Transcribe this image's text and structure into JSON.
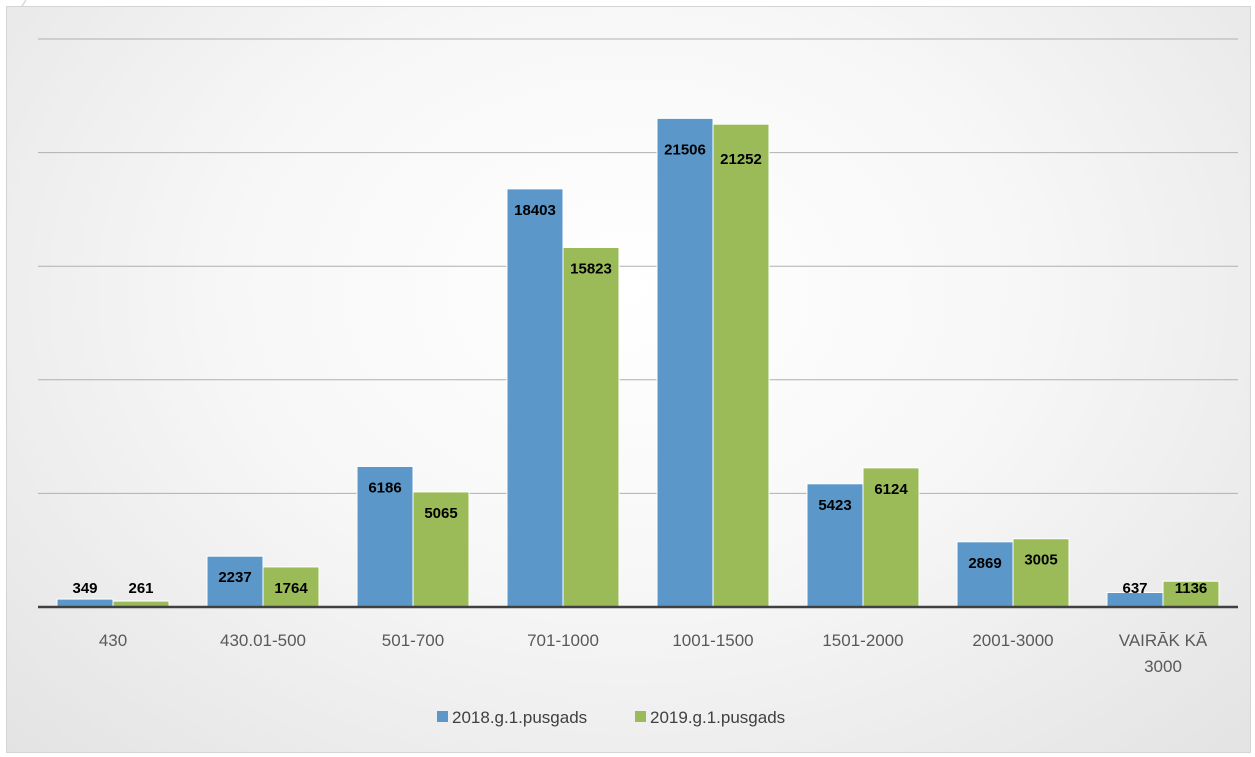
{
  "chart_data": {
    "type": "bar",
    "categories": [
      "430",
      "430.01-500",
      "501-700",
      "701-1000",
      "1001-1500",
      "1501-2000",
      "2001-3000",
      "VAIRĀK KĀ 3000"
    ],
    "category_lines": [
      [
        "430"
      ],
      [
        "430.01-500"
      ],
      [
        "501-700"
      ],
      [
        "701-1000"
      ],
      [
        "1001-1500"
      ],
      [
        "1501-2000"
      ],
      [
        "2001-3000"
      ],
      [
        "VAIRĀK KĀ",
        "3000"
      ]
    ],
    "series": [
      {
        "name": "2018.g.1.pusgads",
        "color": "#5b97c8",
        "values": [
          349,
          2237,
          6186,
          18403,
          21506,
          5423,
          2869,
          637
        ]
      },
      {
        "name": "2019.g.1.pusgads",
        "color": "#9bbb59",
        "values": [
          261,
          1764,
          5065,
          15823,
          21252,
          6124,
          3005,
          1136
        ]
      }
    ],
    "ylim": [
      0,
      25000
    ],
    "gridlines": [
      5000,
      10000,
      15000,
      20000,
      25000
    ],
    "grid": true,
    "legend": "bottom"
  }
}
